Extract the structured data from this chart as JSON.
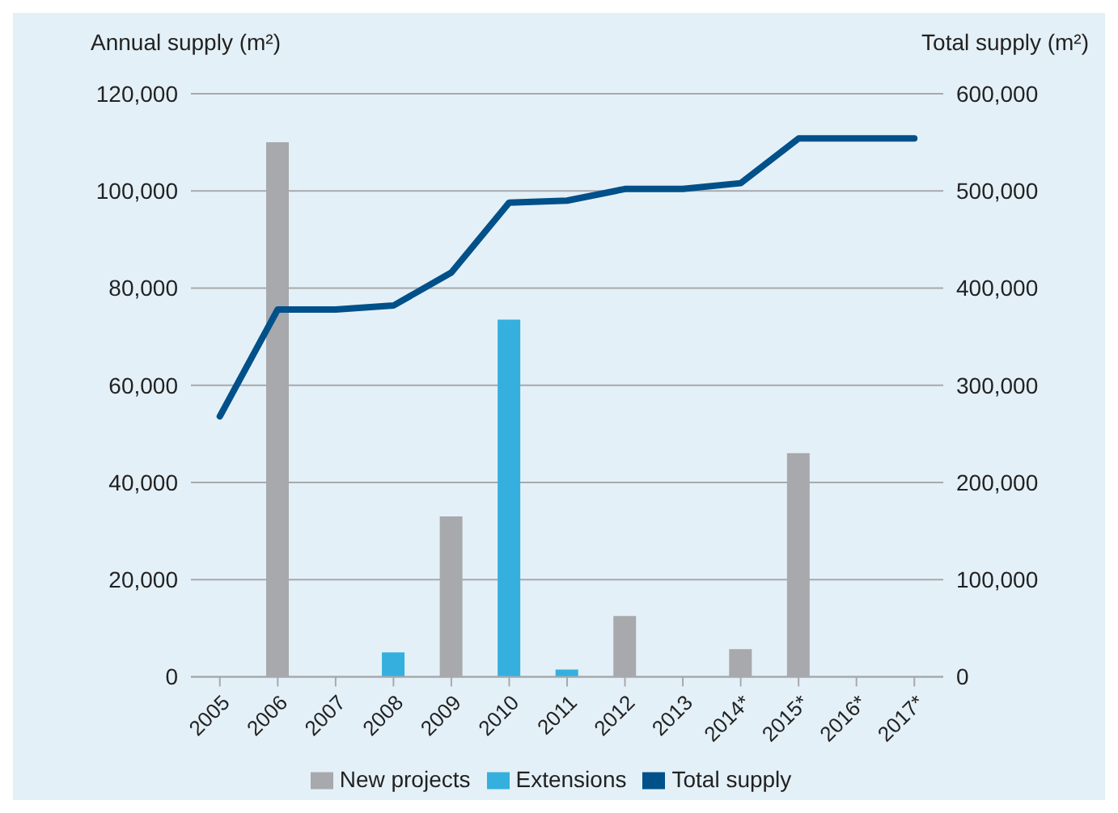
{
  "chart_data": {
    "type": "bar",
    "stacked": true,
    "ylabel": "Annual supply (m²)",
    "y2label": "Total supply (m²)",
    "categories": [
      "2005",
      "2006",
      "2007",
      "2008",
      "2009",
      "2010",
      "2011",
      "2012",
      "2013",
      "2014*",
      "2015*",
      "2016*",
      "2017*"
    ],
    "series": [
      {
        "name": "New projects",
        "color": "#a7a9ac",
        "values": [
          null,
          110000,
          null,
          null,
          33000,
          null,
          null,
          12500,
          null,
          5700,
          46000,
          null,
          null
        ]
      },
      {
        "name": "Extensions",
        "color": "#35b0de",
        "values": [
          null,
          null,
          null,
          5000,
          null,
          73500,
          1500,
          null,
          null,
          null,
          null,
          null,
          null
        ]
      },
      {
        "name": "Total supply",
        "type": "line",
        "axis": "y2",
        "color": "#00508a",
        "values": [
          268000,
          378000,
          378000,
          382000,
          416000,
          488000,
          490000,
          502000,
          502000,
          508000,
          554000,
          554000,
          554000
        ]
      }
    ],
    "ylim": [
      0,
      120000
    ],
    "yticks": [
      0,
      {
        "value": 20000,
        "label": "20,000"
      },
      {
        "value": 40000,
        "label": "40,000"
      },
      {
        "value": 60000,
        "label": "60,000"
      },
      {
        "value": 80000,
        "label": "80,000"
      },
      {
        "value": 100000,
        "label": "100,000"
      },
      {
        "value": 120000,
        "label": "120,000"
      }
    ],
    "y2lim": [
      0,
      600000
    ],
    "y2ticks": [
      0,
      {
        "value": 100000,
        "label": "100,000"
      },
      {
        "value": 200000,
        "label": "200,000"
      },
      {
        "value": 300000,
        "label": "300,000"
      },
      {
        "value": 400000,
        "label": "400,000"
      },
      {
        "value": 500000,
        "label": "500,000"
      },
      {
        "value": 600000,
        "label": "600,000"
      }
    ],
    "grid": "y",
    "legend": "bottom",
    "marker": "none"
  }
}
